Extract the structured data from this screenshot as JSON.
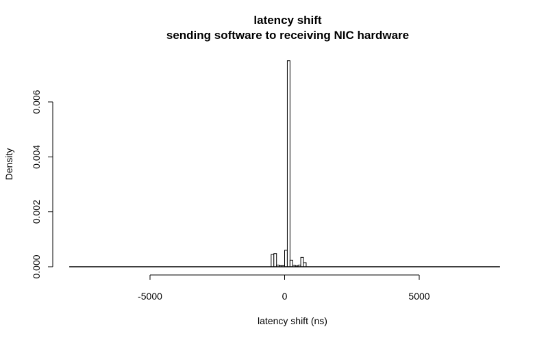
{
  "chart_data": {
    "type": "bar",
    "title": "latency shift",
    "subtitle": "sending software to receiving NIC hardware",
    "xlabel": "latency shift (ns)",
    "ylabel": "Density",
    "xlim": [
      -8000,
      8000
    ],
    "ylim": [
      0,
      0.0075
    ],
    "x_ticks": [
      -5000,
      0,
      5000
    ],
    "x_tick_labels": [
      "-5000",
      "0",
      "5000"
    ],
    "y_ticks": [
      0,
      0.002,
      0.004,
      0.006
    ],
    "y_tick_labels": [
      "0.000",
      "0.002",
      "0.004",
      "0.006"
    ],
    "grid": false,
    "bin_width": 100,
    "bins": [
      {
        "x0": -8000,
        "x1": -500,
        "density": 0.0
      },
      {
        "x0": -500,
        "x1": -400,
        "density": 0.00045
      },
      {
        "x0": -400,
        "x1": -300,
        "density": 0.00048
      },
      {
        "x0": -300,
        "x1": -200,
        "density": 6e-05
      },
      {
        "x0": -200,
        "x1": -100,
        "density": 4e-05
      },
      {
        "x0": -100,
        "x1": 0,
        "density": 4e-05
      },
      {
        "x0": 0,
        "x1": 100,
        "density": 0.0006
      },
      {
        "x0": 100,
        "x1": 200,
        "density": 0.0075
      },
      {
        "x0": 200,
        "x1": 300,
        "density": 0.00024
      },
      {
        "x0": 300,
        "x1": 400,
        "density": 5e-05
      },
      {
        "x0": 400,
        "x1": 500,
        "density": 3e-05
      },
      {
        "x0": 500,
        "x1": 600,
        "density": 6e-05
      },
      {
        "x0": 600,
        "x1": 700,
        "density": 0.00034
      },
      {
        "x0": 700,
        "x1": 800,
        "density": 0.00015
      },
      {
        "x0": 800,
        "x1": 8000,
        "density": 0.0
      }
    ]
  }
}
